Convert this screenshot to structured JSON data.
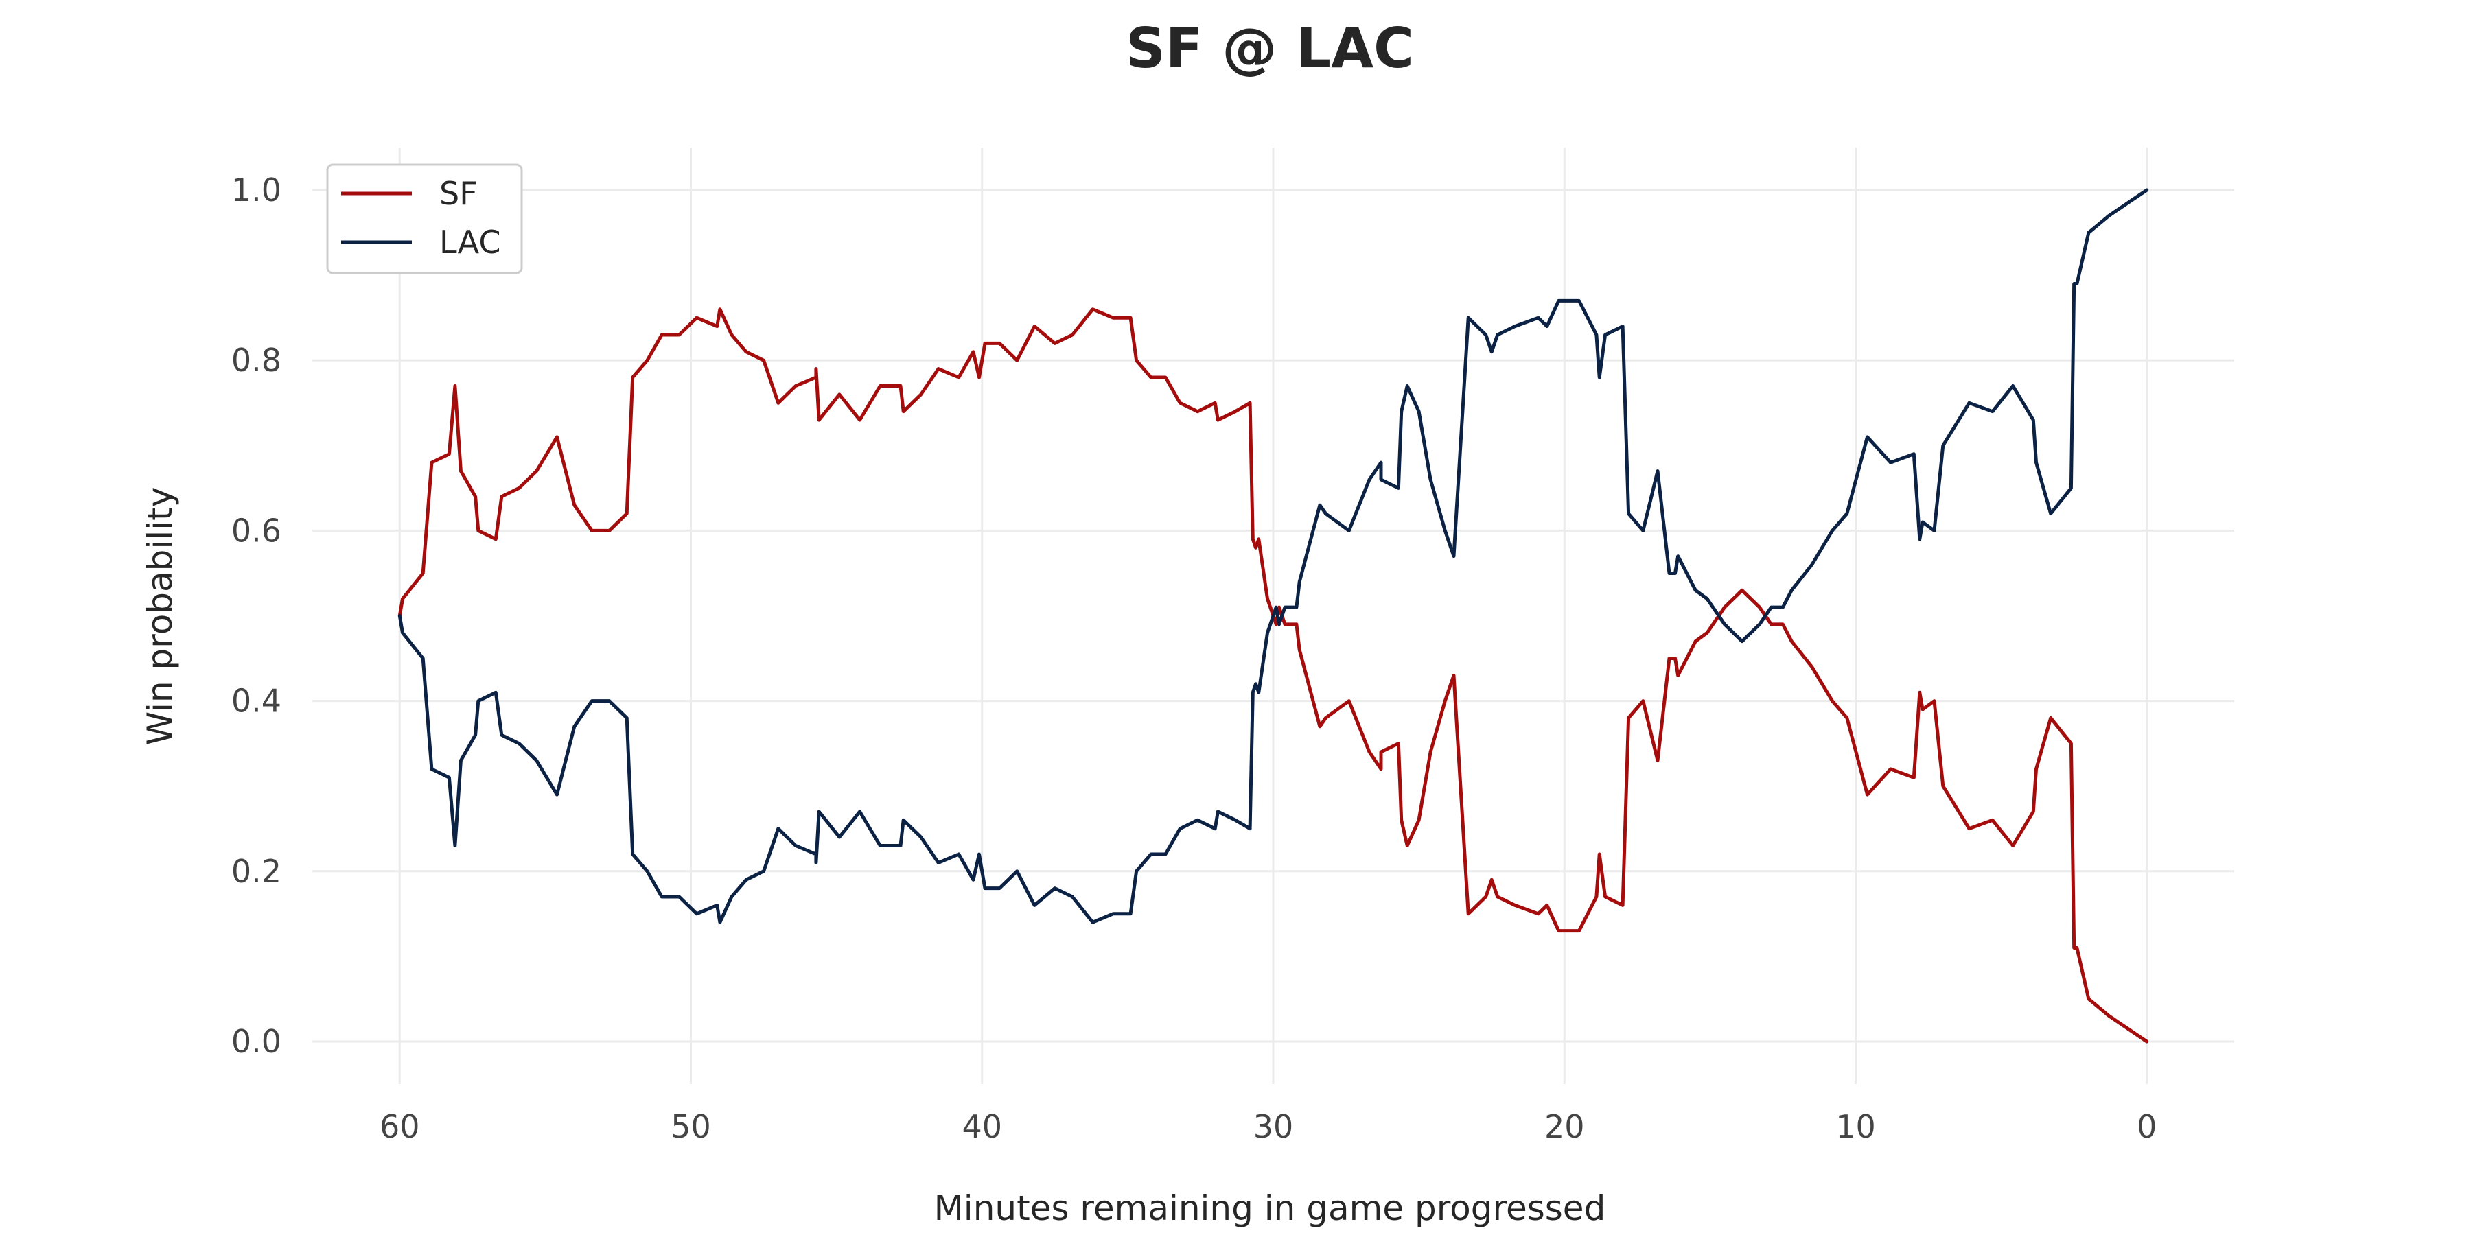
{
  "chart_data": {
    "type": "line",
    "title": "SF @ LAC",
    "xlabel": "Minutes remaining in game progressed",
    "ylabel": "Win probability",
    "xlim": [
      63,
      -3
    ],
    "ylim": [
      -0.05,
      1.05
    ],
    "x_ticks": [
      60,
      50,
      40,
      30,
      20,
      10,
      0
    ],
    "y_ticks": [
      0.0,
      0.2,
      0.4,
      0.6,
      0.8,
      1.0
    ],
    "x_tick_labels": [
      "60",
      "50",
      "40",
      "30",
      "20",
      "10",
      "0"
    ],
    "y_tick_labels": [
      "0.0",
      "0.2",
      "0.4",
      "0.6",
      "0.8",
      "1.0"
    ],
    "grid": true,
    "legend_position": "top-left",
    "series": [
      {
        "name": "SF",
        "color": "#a50d0d",
        "points": [
          [
            60,
            0.5
          ],
          [
            59.9,
            0.52
          ],
          [
            59.2,
            0.55
          ],
          [
            58.9,
            0.68
          ],
          [
            58.3,
            0.69
          ],
          [
            58.1,
            0.77
          ],
          [
            57.9,
            0.67
          ],
          [
            57.4,
            0.64
          ],
          [
            57.3,
            0.6
          ],
          [
            56.7,
            0.59
          ],
          [
            56.5,
            0.64
          ],
          [
            55.9,
            0.65
          ],
          [
            55.3,
            0.67
          ],
          [
            54.6,
            0.71
          ],
          [
            54.0,
            0.63
          ],
          [
            53.4,
            0.6
          ],
          [
            52.8,
            0.6
          ],
          [
            52.2,
            0.62
          ],
          [
            52.0,
            0.78
          ],
          [
            51.5,
            0.8
          ],
          [
            51.0,
            0.83
          ],
          [
            50.4,
            0.83
          ],
          [
            49.8,
            0.85
          ],
          [
            49.1,
            0.84
          ],
          [
            49.0,
            0.86
          ],
          [
            48.6,
            0.83
          ],
          [
            48.1,
            0.81
          ],
          [
            47.5,
            0.8
          ],
          [
            47.0,
            0.75
          ],
          [
            46.4,
            0.77
          ],
          [
            45.7,
            0.78
          ],
          [
            45.7,
            0.79
          ],
          [
            45.6,
            0.73
          ],
          [
            44.9,
            0.76
          ],
          [
            44.2,
            0.73
          ],
          [
            43.5,
            0.77
          ],
          [
            42.8,
            0.77
          ],
          [
            42.7,
            0.74
          ],
          [
            42.1,
            0.76
          ],
          [
            41.5,
            0.79
          ],
          [
            40.8,
            0.78
          ],
          [
            40.3,
            0.81
          ],
          [
            40.1,
            0.78
          ],
          [
            39.9,
            0.82
          ],
          [
            39.4,
            0.82
          ],
          [
            38.8,
            0.8
          ],
          [
            38.2,
            0.84
          ],
          [
            37.5,
            0.82
          ],
          [
            36.9,
            0.83
          ],
          [
            36.2,
            0.86
          ],
          [
            35.5,
            0.85
          ],
          [
            34.9,
            0.85
          ],
          [
            34.7,
            0.8
          ],
          [
            34.2,
            0.78
          ],
          [
            33.7,
            0.78
          ],
          [
            33.2,
            0.75
          ],
          [
            32.6,
            0.74
          ],
          [
            32.0,
            0.75
          ],
          [
            31.9,
            0.73
          ],
          [
            31.3,
            0.74
          ],
          [
            30.8,
            0.75
          ],
          [
            30.7,
            0.59
          ],
          [
            30.6,
            0.58
          ],
          [
            30.5,
            0.59
          ],
          [
            30.2,
            0.52
          ],
          [
            30.0,
            0.5
          ],
          [
            29.9,
            0.49
          ],
          [
            29.8,
            0.51
          ],
          [
            29.6,
            0.49
          ],
          [
            29.2,
            0.49
          ],
          [
            29.1,
            0.46
          ],
          [
            28.4,
            0.37
          ],
          [
            28.2,
            0.38
          ],
          [
            27.4,
            0.4
          ],
          [
            26.7,
            0.34
          ],
          [
            26.3,
            0.32
          ],
          [
            26.3,
            0.34
          ],
          [
            25.7,
            0.35
          ],
          [
            25.6,
            0.26
          ],
          [
            25.4,
            0.23
          ],
          [
            25.0,
            0.26
          ],
          [
            24.6,
            0.34
          ],
          [
            24.1,
            0.4
          ],
          [
            23.8,
            0.43
          ],
          [
            23.3,
            0.15
          ],
          [
            22.7,
            0.17
          ],
          [
            22.5,
            0.19
          ],
          [
            22.3,
            0.17
          ],
          [
            21.7,
            0.16
          ],
          [
            20.9,
            0.15
          ],
          [
            20.6,
            0.16
          ],
          [
            20.2,
            0.13
          ],
          [
            19.5,
            0.13
          ],
          [
            18.9,
            0.17
          ],
          [
            18.8,
            0.22
          ],
          [
            18.6,
            0.17
          ],
          [
            18.0,
            0.16
          ],
          [
            17.8,
            0.38
          ],
          [
            17.3,
            0.4
          ],
          [
            16.8,
            0.33
          ],
          [
            16.4,
            0.45
          ],
          [
            16.2,
            0.45
          ],
          [
            16.1,
            0.43
          ],
          [
            15.5,
            0.47
          ],
          [
            15.1,
            0.48
          ],
          [
            14.5,
            0.51
          ],
          [
            13.9,
            0.53
          ],
          [
            13.3,
            0.51
          ],
          [
            12.9,
            0.49
          ],
          [
            12.5,
            0.49
          ],
          [
            12.2,
            0.47
          ],
          [
            11.5,
            0.44
          ],
          [
            10.8,
            0.4
          ],
          [
            10.3,
            0.38
          ],
          [
            9.6,
            0.29
          ],
          [
            8.8,
            0.32
          ],
          [
            8.0,
            0.31
          ],
          [
            7.8,
            0.41
          ],
          [
            7.7,
            0.39
          ],
          [
            7.3,
            0.4
          ],
          [
            7.0,
            0.3
          ],
          [
            6.1,
            0.25
          ],
          [
            5.3,
            0.26
          ],
          [
            4.6,
            0.23
          ],
          [
            3.9,
            0.27
          ],
          [
            3.8,
            0.32
          ],
          [
            3.3,
            0.38
          ],
          [
            2.6,
            0.35
          ],
          [
            2.5,
            0.11
          ],
          [
            2.4,
            0.11
          ],
          [
            2.0,
            0.05
          ],
          [
            1.3,
            0.03
          ],
          [
            0,
            0.0
          ]
        ]
      },
      {
        "name": "LAC",
        "color": "#0b2244",
        "points": [
          [
            60,
            0.5
          ],
          [
            59.9,
            0.48
          ],
          [
            59.2,
            0.45
          ],
          [
            58.9,
            0.32
          ],
          [
            58.3,
            0.31
          ],
          [
            58.1,
            0.23
          ],
          [
            57.9,
            0.33
          ],
          [
            57.4,
            0.36
          ],
          [
            57.3,
            0.4
          ],
          [
            56.7,
            0.41
          ],
          [
            56.5,
            0.36
          ],
          [
            55.9,
            0.35
          ],
          [
            55.3,
            0.33
          ],
          [
            54.6,
            0.29
          ],
          [
            54.0,
            0.37
          ],
          [
            53.4,
            0.4
          ],
          [
            52.8,
            0.4
          ],
          [
            52.2,
            0.38
          ],
          [
            52.0,
            0.22
          ],
          [
            51.5,
            0.2
          ],
          [
            51.0,
            0.17
          ],
          [
            50.4,
            0.17
          ],
          [
            49.8,
            0.15
          ],
          [
            49.1,
            0.16
          ],
          [
            49.0,
            0.14
          ],
          [
            48.6,
            0.17
          ],
          [
            48.1,
            0.19
          ],
          [
            47.5,
            0.2
          ],
          [
            47.0,
            0.25
          ],
          [
            46.4,
            0.23
          ],
          [
            45.7,
            0.22
          ],
          [
            45.7,
            0.21
          ],
          [
            45.6,
            0.27
          ],
          [
            44.9,
            0.24
          ],
          [
            44.2,
            0.27
          ],
          [
            43.5,
            0.23
          ],
          [
            42.8,
            0.23
          ],
          [
            42.7,
            0.26
          ],
          [
            42.1,
            0.24
          ],
          [
            41.5,
            0.21
          ],
          [
            40.8,
            0.22
          ],
          [
            40.3,
            0.19
          ],
          [
            40.1,
            0.22
          ],
          [
            39.9,
            0.18
          ],
          [
            39.4,
            0.18
          ],
          [
            38.8,
            0.2
          ],
          [
            38.2,
            0.16
          ],
          [
            37.5,
            0.18
          ],
          [
            36.9,
            0.17
          ],
          [
            36.2,
            0.14
          ],
          [
            35.5,
            0.15
          ],
          [
            34.9,
            0.15
          ],
          [
            34.7,
            0.2
          ],
          [
            34.2,
            0.22
          ],
          [
            33.7,
            0.22
          ],
          [
            33.2,
            0.25
          ],
          [
            32.6,
            0.26
          ],
          [
            32.0,
            0.25
          ],
          [
            31.9,
            0.27
          ],
          [
            31.3,
            0.26
          ],
          [
            30.8,
            0.25
          ],
          [
            30.7,
            0.41
          ],
          [
            30.6,
            0.42
          ],
          [
            30.5,
            0.41
          ],
          [
            30.2,
            0.48
          ],
          [
            30.0,
            0.5
          ],
          [
            29.9,
            0.51
          ],
          [
            29.8,
            0.49
          ],
          [
            29.6,
            0.51
          ],
          [
            29.2,
            0.51
          ],
          [
            29.1,
            0.54
          ],
          [
            28.4,
            0.63
          ],
          [
            28.2,
            0.62
          ],
          [
            27.4,
            0.6
          ],
          [
            26.7,
            0.66
          ],
          [
            26.3,
            0.68
          ],
          [
            26.3,
            0.66
          ],
          [
            25.7,
            0.65
          ],
          [
            25.6,
            0.74
          ],
          [
            25.4,
            0.77
          ],
          [
            25.0,
            0.74
          ],
          [
            24.6,
            0.66
          ],
          [
            24.1,
            0.6
          ],
          [
            23.8,
            0.57
          ],
          [
            23.3,
            0.85
          ],
          [
            22.7,
            0.83
          ],
          [
            22.5,
            0.81
          ],
          [
            22.3,
            0.83
          ],
          [
            21.7,
            0.84
          ],
          [
            20.9,
            0.85
          ],
          [
            20.6,
            0.84
          ],
          [
            20.2,
            0.87
          ],
          [
            19.5,
            0.87
          ],
          [
            18.9,
            0.83
          ],
          [
            18.8,
            0.78
          ],
          [
            18.6,
            0.83
          ],
          [
            18.0,
            0.84
          ],
          [
            17.8,
            0.62
          ],
          [
            17.3,
            0.6
          ],
          [
            16.8,
            0.67
          ],
          [
            16.4,
            0.55
          ],
          [
            16.2,
            0.55
          ],
          [
            16.1,
            0.57
          ],
          [
            15.5,
            0.53
          ],
          [
            15.1,
            0.52
          ],
          [
            14.5,
            0.49
          ],
          [
            13.9,
            0.47
          ],
          [
            13.3,
            0.49
          ],
          [
            12.9,
            0.51
          ],
          [
            12.5,
            0.51
          ],
          [
            12.2,
            0.53
          ],
          [
            11.5,
            0.56
          ],
          [
            10.8,
            0.6
          ],
          [
            10.3,
            0.62
          ],
          [
            9.6,
            0.71
          ],
          [
            8.8,
            0.68
          ],
          [
            8.0,
            0.69
          ],
          [
            7.8,
            0.59
          ],
          [
            7.7,
            0.61
          ],
          [
            7.3,
            0.6
          ],
          [
            7.0,
            0.7
          ],
          [
            6.1,
            0.75
          ],
          [
            5.3,
            0.74
          ],
          [
            4.6,
            0.77
          ],
          [
            3.9,
            0.73
          ],
          [
            3.8,
            0.68
          ],
          [
            3.3,
            0.62
          ],
          [
            2.6,
            0.65
          ],
          [
            2.5,
            0.89
          ],
          [
            2.4,
            0.89
          ],
          [
            2.0,
            0.95
          ],
          [
            1.3,
            0.97
          ],
          [
            0,
            1.0
          ]
        ]
      }
    ]
  }
}
